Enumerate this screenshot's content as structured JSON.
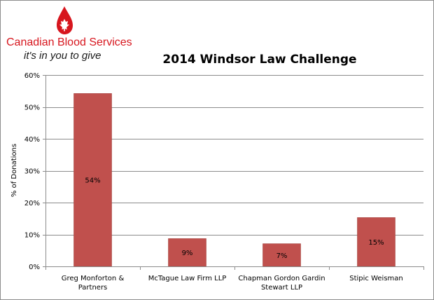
{
  "logo": {
    "brand_name": "Canadian Blood Services",
    "tagline": "it's in you to give",
    "brand_color": "#d7161e"
  },
  "chart_data": {
    "type": "bar",
    "title": "2014 Windsor Law Challenge",
    "xlabel": "",
    "ylabel": "% of Donations",
    "categories": [
      [
        "Greg Monforton &",
        "Partners"
      ],
      [
        "McTague Law Firm LLP"
      ],
      [
        "Chapman Gordon Gardin",
        "Stewart LLP"
      ],
      [
        "Stipic Weisman"
      ]
    ],
    "values": [
      54.2,
      8.7,
      7.1,
      15.3
    ],
    "data_labels": [
      "54%",
      "9%",
      "7%",
      "15%"
    ],
    "ylim": [
      0,
      60
    ],
    "yticks": [
      0,
      10,
      20,
      30,
      40,
      50,
      60
    ],
    "ytick_labels": [
      "0%",
      "10%",
      "20%",
      "30%",
      "40%",
      "50%",
      "60%"
    ],
    "grid": true,
    "legend": "none",
    "bar_color": "#c0504d"
  }
}
